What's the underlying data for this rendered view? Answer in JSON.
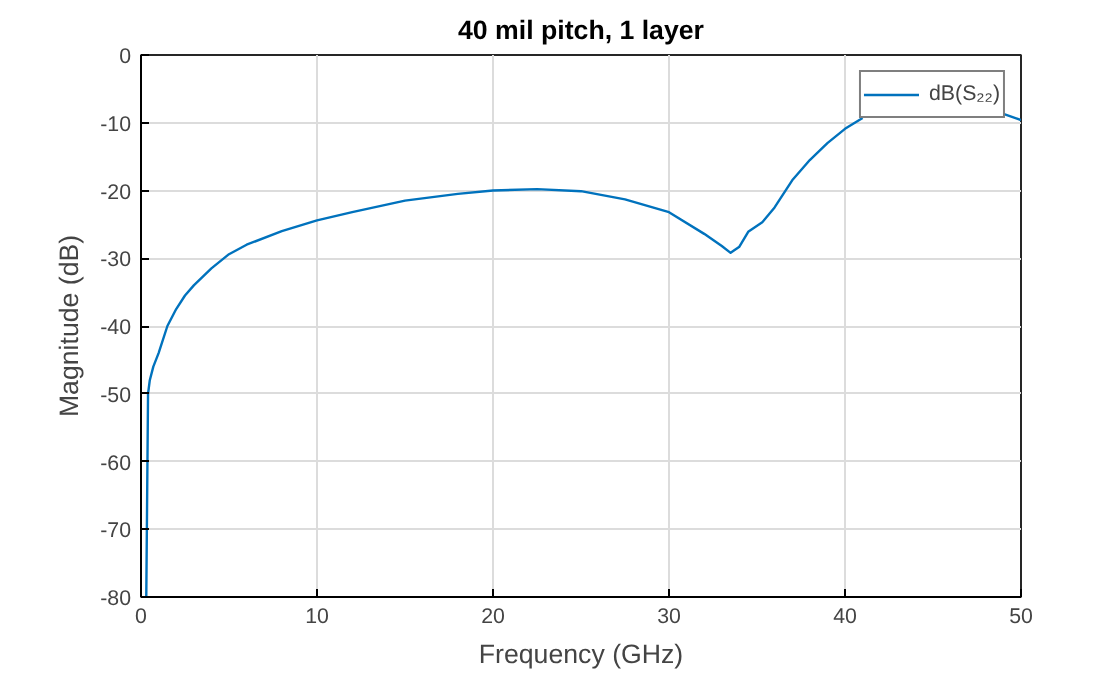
{
  "chart_data": {
    "type": "line",
    "title": "40 mil pitch, 1 layer",
    "xlabel": "Frequency (GHz)",
    "ylabel": "Magnitude (dB)",
    "xlim": [
      0,
      50
    ],
    "ylim": [
      -80,
      0
    ],
    "xticks": [
      0,
      10,
      20,
      30,
      40,
      50
    ],
    "yticks": [
      -80,
      -70,
      -60,
      -50,
      -40,
      -30,
      -20,
      -10,
      0
    ],
    "grid": true,
    "legend": "top right",
    "x": [
      0.3,
      0.4,
      0.5,
      0.7,
      1,
      1.5,
      2,
      2.5,
      3,
      4,
      5,
      6,
      8,
      10,
      12,
      15,
      18,
      20,
      22.5,
      25,
      27.5,
      30,
      32,
      33,
      33.5,
      34,
      34.5,
      35.3,
      36,
      37,
      38,
      39,
      40,
      41,
      41.5,
      43,
      45,
      47,
      49,
      50
    ],
    "series": [
      {
        "name": "dB(S₂₂)",
        "color": "#0072bd",
        "values": [
          -80,
          -50,
          -48,
          -46,
          -44,
          -40,
          -37.5,
          -35.5,
          -34,
          -31.5,
          -29.4,
          -28,
          -26,
          -24.4,
          -23.2,
          -21.5,
          -20.5,
          -20,
          -19.8,
          -20.1,
          -21.3,
          -23.2,
          -26.4,
          -28.2,
          -29.2,
          -28.3,
          -26.1,
          -24.7,
          -22.5,
          -18.5,
          -15.5,
          -13,
          -10.9,
          -9.3,
          null,
          null,
          null,
          null,
          -8.7,
          -9.6
        ]
      }
    ]
  }
}
